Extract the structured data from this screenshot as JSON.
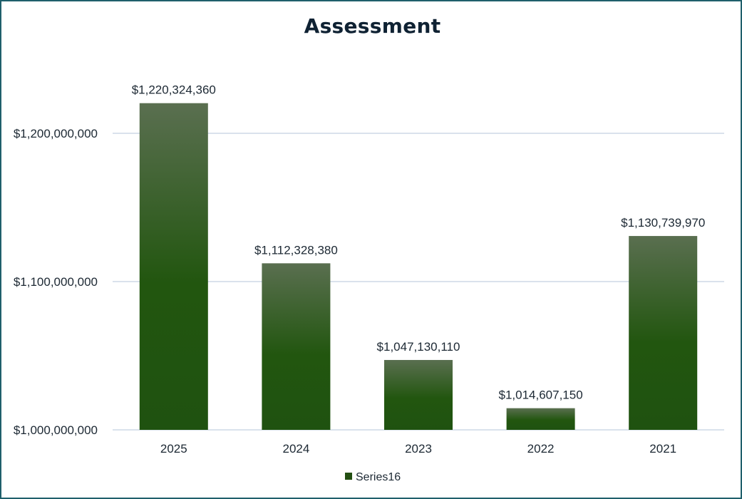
{
  "chart_data": {
    "type": "bar",
    "title": "Assessment",
    "categories": [
      "2025",
      "2024",
      "2023",
      "2022",
      "2021"
    ],
    "series": [
      {
        "name": "Series16",
        "values": [
          1220324360,
          1112328380,
          1047130110,
          1014607150,
          1130739970
        ],
        "labels": [
          "$1,220,324,360",
          "$1,112,328,380",
          "$1,047,130,110",
          "$1,014,607,150",
          "$1,130,739,970"
        ]
      }
    ],
    "y_ticks": [
      {
        "value": 1000000000,
        "label": "$1,000,000,000"
      },
      {
        "value": 1100000000,
        "label": "$1,100,000,000"
      },
      {
        "value": 1200000000,
        "label": "$1,200,000,000"
      }
    ],
    "ylim": [
      1000000000,
      1240000000
    ],
    "grid": true,
    "legend_position": "bottom",
    "colors": {
      "bar_top": "#5a6f50",
      "bar_bottom": "#1f5210",
      "legend_swatch": "#234f12",
      "grid": "#cdd9e6",
      "border": "#1f5f6b"
    }
  }
}
